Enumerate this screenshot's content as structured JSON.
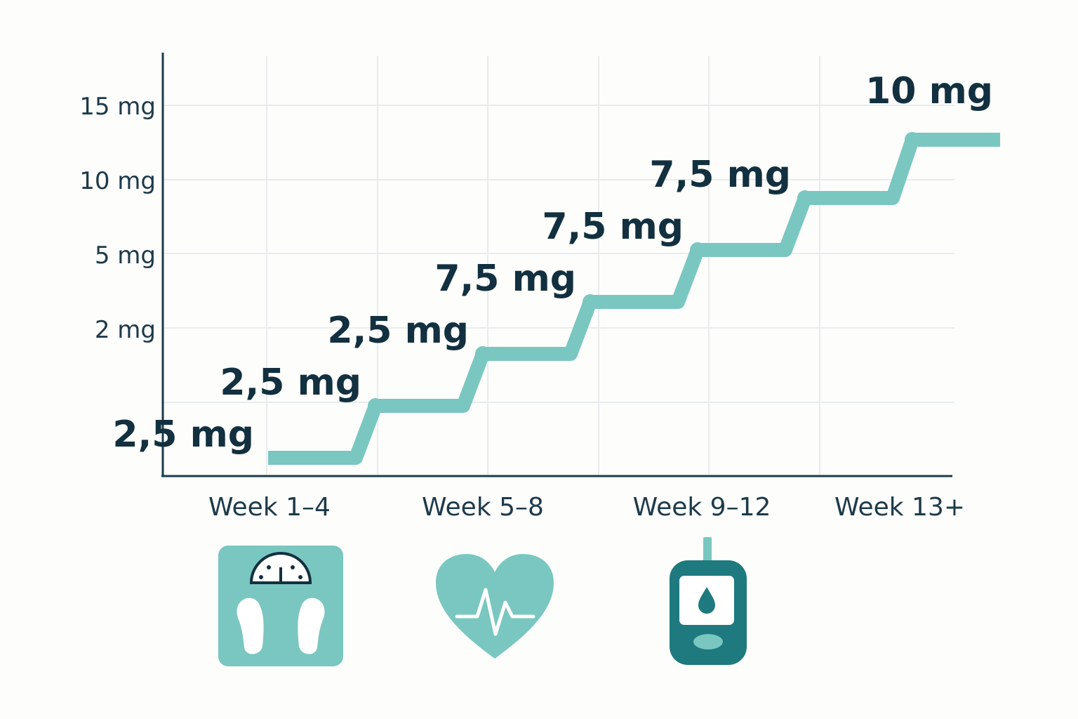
{
  "chart_data": {
    "type": "line",
    "title": "",
    "xlabel": "",
    "ylabel": "",
    "y_tick_labels": [
      "2 mg",
      "5 mg",
      "10 mg",
      "15 mg"
    ],
    "x_tick_labels": [
      "Week 1–4",
      "Week 5–8",
      "Week 9–12",
      "Week 13+"
    ],
    "grid": true,
    "legend": "none",
    "steps": [
      {
        "step": 1,
        "label": "2,5 mg"
      },
      {
        "step": 2,
        "label": "2,5 mg"
      },
      {
        "step": 3,
        "label": "2,5 mg"
      },
      {
        "step": 4,
        "label": "7,5 mg"
      },
      {
        "step": 5,
        "label": "7,5 mg"
      },
      {
        "step": 6,
        "label": "7,5 mg"
      },
      {
        "step": 7,
        "label": "10 mg"
      }
    ]
  },
  "icons": [
    {
      "name": "weight-scale-icon",
      "week": "Week 1–4"
    },
    {
      "name": "heart-pulse-icon",
      "week": "Week 5–8"
    },
    {
      "name": "glucose-meter-icon",
      "week": "Week 9–12"
    }
  ],
  "colors": {
    "line": "#79c7c0",
    "icon_light": "#79c7c0",
    "icon_dark": "#1e7a7e",
    "text": "#12303f",
    "axis": "#1d3a4a",
    "grid": "#e8ecee"
  }
}
